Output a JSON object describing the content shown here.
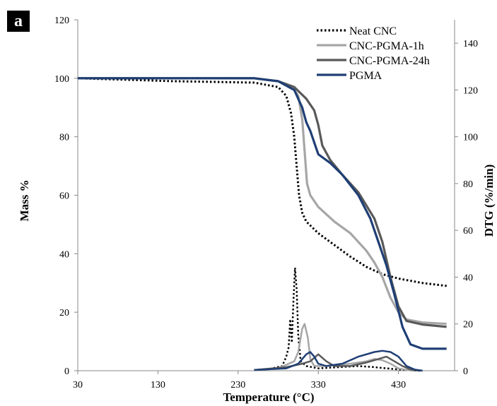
{
  "panel_label": "a",
  "chart_data": {
    "type": "line",
    "xlabel": "Temperature (°C)",
    "ylabel_left": "Mass %",
    "ylabel_right": "DTG (%/min)",
    "xlim": [
      30,
      500
    ],
    "ylim_left": [
      0,
      120
    ],
    "ylim_right": [
      0,
      150
    ],
    "x_ticks": [
      30,
      130,
      230,
      330,
      430
    ],
    "y_ticks_left": [
      0,
      20,
      40,
      60,
      80,
      100,
      120
    ],
    "y_ticks_right": [
      0,
      20,
      40,
      60,
      80,
      100,
      120,
      140
    ],
    "grid": false,
    "legend": "top-right",
    "series": [
      {
        "name": "Neat CNC",
        "color": "#000000",
        "style": "dotted",
        "mass": [
          [
            30,
            100
          ],
          [
            150,
            99
          ],
          [
            250,
            98.5
          ],
          [
            280,
            97
          ],
          [
            290,
            94
          ],
          [
            296,
            88
          ],
          [
            300,
            80
          ],
          [
            303,
            70
          ],
          [
            306,
            60
          ],
          [
            310,
            54
          ],
          [
            315,
            51
          ],
          [
            330,
            47
          ],
          [
            350,
            43
          ],
          [
            370,
            39
          ],
          [
            390,
            35.5
          ],
          [
            410,
            33
          ],
          [
            430,
            31.5
          ],
          [
            460,
            30
          ],
          [
            490,
            29
          ]
        ],
        "dtg": [
          [
            250,
            0.3
          ],
          [
            270,
            0.8
          ],
          [
            285,
            2
          ],
          [
            290,
            6
          ],
          [
            293,
            10
          ],
          [
            295,
            22
          ],
          [
            297,
            12
          ],
          [
            299,
            30
          ],
          [
            301,
            44
          ],
          [
            303,
            35
          ],
          [
            305,
            15
          ],
          [
            308,
            4
          ],
          [
            315,
            2
          ],
          [
            330,
            1
          ],
          [
            380,
            2
          ],
          [
            400,
            1.5
          ],
          [
            430,
            0.5
          ],
          [
            450,
            0.1
          ],
          [
            460,
            0
          ]
        ]
      },
      {
        "name": "CNC-PGMA-1h",
        "color": "#a6a6a6",
        "style": "solid",
        "mass": [
          [
            30,
            100
          ],
          [
            250,
            100
          ],
          [
            280,
            99
          ],
          [
            300,
            96
          ],
          [
            305,
            94
          ],
          [
            310,
            86
          ],
          [
            313,
            75
          ],
          [
            316,
            64
          ],
          [
            320,
            60
          ],
          [
            330,
            56
          ],
          [
            350,
            51
          ],
          [
            370,
            47
          ],
          [
            390,
            41
          ],
          [
            400,
            37
          ],
          [
            410,
            32
          ],
          [
            420,
            25
          ],
          [
            430,
            20
          ],
          [
            440,
            17.5
          ],
          [
            460,
            16.5
          ],
          [
            490,
            16
          ]
        ],
        "dtg": [
          [
            250,
            0.3
          ],
          [
            280,
            1
          ],
          [
            300,
            4
          ],
          [
            305,
            8
          ],
          [
            310,
            18
          ],
          [
            313,
            20
          ],
          [
            317,
            14
          ],
          [
            320,
            5
          ],
          [
            325,
            2
          ],
          [
            340,
            2
          ],
          [
            370,
            3
          ],
          [
            390,
            4
          ],
          [
            400,
            5
          ],
          [
            410,
            4.5
          ],
          [
            420,
            3
          ],
          [
            430,
            1
          ],
          [
            440,
            0.3
          ],
          [
            450,
            0
          ]
        ]
      },
      {
        "name": "CNC-PGMA-24h",
        "color": "#595959",
        "style": "solid",
        "mass": [
          [
            30,
            100
          ],
          [
            250,
            100
          ],
          [
            280,
            99
          ],
          [
            300,
            97
          ],
          [
            315,
            93
          ],
          [
            325,
            89
          ],
          [
            330,
            84
          ],
          [
            335,
            77
          ],
          [
            345,
            72
          ],
          [
            360,
            67
          ],
          [
            380,
            61
          ],
          [
            400,
            52
          ],
          [
            410,
            44
          ],
          [
            420,
            32
          ],
          [
            430,
            22
          ],
          [
            440,
            17
          ],
          [
            460,
            15.8
          ],
          [
            490,
            15
          ]
        ],
        "dtg": [
          [
            250,
            0.3
          ],
          [
            290,
            1.5
          ],
          [
            310,
            3
          ],
          [
            320,
            4
          ],
          [
            330,
            7
          ],
          [
            340,
            4
          ],
          [
            350,
            2
          ],
          [
            370,
            2
          ],
          [
            390,
            3.5
          ],
          [
            405,
            5
          ],
          [
            415,
            6
          ],
          [
            425,
            4
          ],
          [
            435,
            2
          ],
          [
            445,
            0.5
          ],
          [
            455,
            0
          ]
        ]
      },
      {
        "name": "PGMA",
        "color": "#1f3f75",
        "style": "solid",
        "mass": [
          [
            30,
            100
          ],
          [
            250,
            100
          ],
          [
            280,
            99
          ],
          [
            300,
            96
          ],
          [
            310,
            90
          ],
          [
            315,
            85
          ],
          [
            320,
            82
          ],
          [
            330,
            74
          ],
          [
            345,
            71
          ],
          [
            360,
            67
          ],
          [
            380,
            60
          ],
          [
            395,
            52
          ],
          [
            405,
            44
          ],
          [
            415,
            36
          ],
          [
            425,
            26
          ],
          [
            435,
            15
          ],
          [
            445,
            9
          ],
          [
            460,
            7.5
          ],
          [
            490,
            7.5
          ]
        ],
        "dtg": [
          [
            250,
            0.3
          ],
          [
            290,
            1
          ],
          [
            305,
            3
          ],
          [
            315,
            7
          ],
          [
            320,
            8
          ],
          [
            325,
            6
          ],
          [
            330,
            3
          ],
          [
            340,
            2
          ],
          [
            360,
            3
          ],
          [
            380,
            6
          ],
          [
            400,
            8
          ],
          [
            410,
            8.5
          ],
          [
            420,
            8
          ],
          [
            430,
            6
          ],
          [
            440,
            2
          ],
          [
            450,
            0.5
          ],
          [
            460,
            0
          ]
        ]
      }
    ]
  }
}
